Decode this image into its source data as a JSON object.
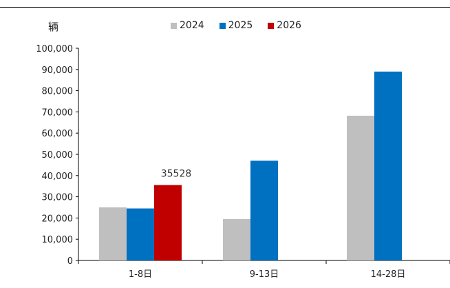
{
  "chart_data": {
    "type": "bar",
    "unit_label": "辆",
    "categories": [
      "1-8日",
      "9-13日",
      "14-28日"
    ],
    "series": [
      {
        "name": "2024",
        "color": "#bfbfbf",
        "values": [
          25000,
          19500,
          68200
        ]
      },
      {
        "name": "2025",
        "color": "#0070c0",
        "values": [
          24500,
          47000,
          89000
        ]
      },
      {
        "name": "2026",
        "color": "#c00000",
        "values": [
          35528,
          null,
          null
        ]
      }
    ],
    "ylim": [
      0,
      100000
    ],
    "yticks": [
      "0",
      "10,000",
      "20,000",
      "30,000",
      "40,000",
      "50,000",
      "60,000",
      "70,000",
      "80,000",
      "90,000",
      "100,000"
    ],
    "annotations": [
      {
        "series": "2026",
        "category": "1-8日",
        "text": "35528"
      }
    ],
    "legend_position": "top",
    "grid": false
  }
}
